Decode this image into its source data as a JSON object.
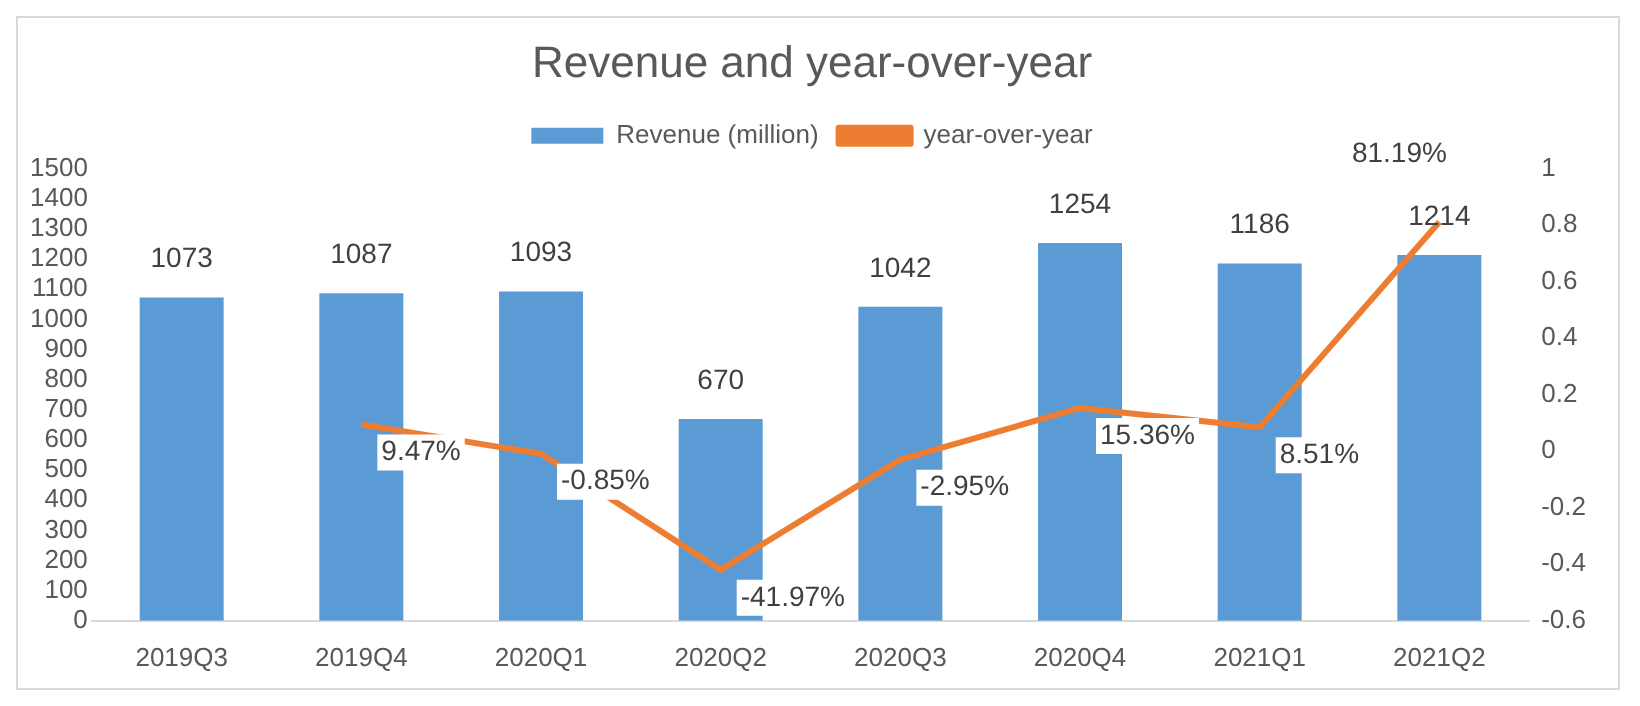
{
  "chart_data": {
    "type": "bar",
    "title": "Revenue and year-over-year",
    "categories": [
      "2019Q3",
      "2019Q4",
      "2020Q1",
      "2020Q2",
      "2020Q3",
      "2020Q4",
      "2021Q1",
      "2021Q2"
    ],
    "series": [
      {
        "name": "Revenue (million)",
        "color": "#5b9bd5",
        "values": [
          1073,
          1087,
          1093,
          670,
          1042,
          1254,
          1186,
          1214
        ]
      },
      {
        "name": "year-over-year",
        "type": "line",
        "axis": "y2",
        "color": "#ed7d31",
        "values": [
          null,
          0.0947,
          -0.0085,
          -0.4197,
          -0.0295,
          0.1536,
          0.0851,
          0.8119
        ],
        "value_labels": [
          null,
          "9.47%",
          "-0.85%",
          "-41.97%",
          "-2.95%",
          "15.36%",
          "8.51%",
          "81.19%"
        ]
      }
    ],
    "data_labels": true,
    "ylim": [
      0,
      1500
    ],
    "yticks": [
      0,
      100,
      200,
      300,
      400,
      500,
      600,
      700,
      800,
      900,
      1000,
      1100,
      1200,
      1300,
      1400,
      1500
    ],
    "y2lim": [
      -0.6,
      1
    ],
    "y2ticks": [
      -0.6,
      -0.4,
      -0.2,
      0,
      0.2,
      0.4,
      0.6,
      0.8,
      1
    ],
    "legend": "top",
    "marker": "none",
    "grid": false
  }
}
